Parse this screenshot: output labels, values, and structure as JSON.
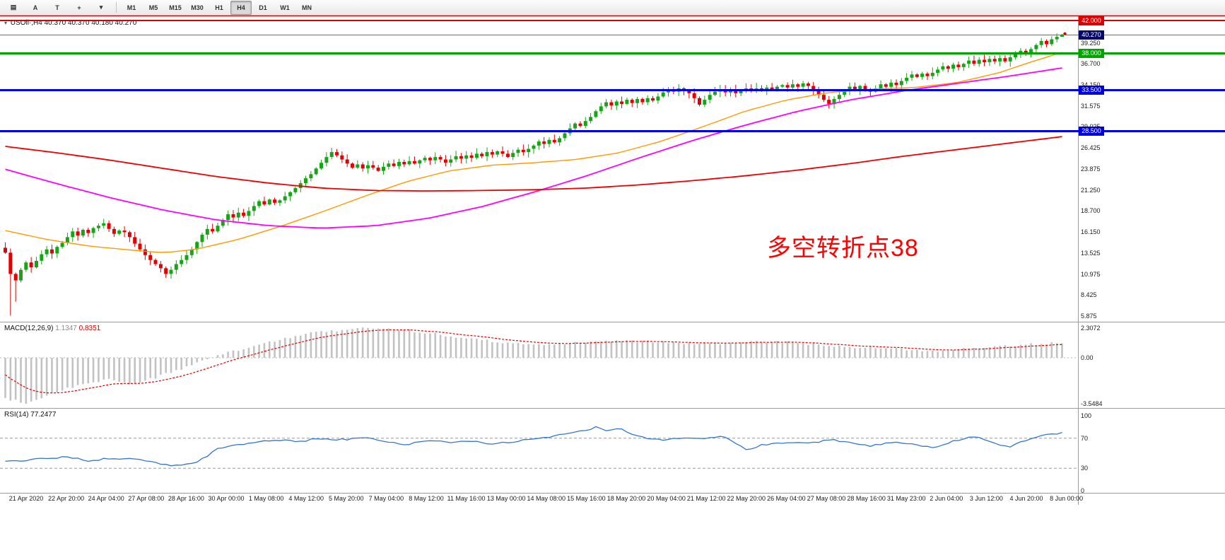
{
  "toolbar": {
    "tools": [
      {
        "name": "chart-type-icon",
        "glyph": "▤"
      },
      {
        "name": "font-tool-button",
        "glyph": "A"
      },
      {
        "name": "text-label-tool-button",
        "glyph": "T"
      },
      {
        "name": "crosshair-tool-icon",
        "glyph": "+"
      },
      {
        "name": "tools-dropdown-icon",
        "glyph": "▾"
      }
    ],
    "timeframes": [
      "M1",
      "M5",
      "M15",
      "M30",
      "H1",
      "H4",
      "D1",
      "W1",
      "MN"
    ],
    "active": "H4"
  },
  "chart": {
    "title_symbol": "USOil·,H4",
    "title_ohlc": "40.370 40.370 40.180 40.270",
    "annotation": {
      "text": "多空转折点38",
      "color": "#ff0000"
    },
    "current_price": {
      "label": "40.270",
      "price": 40.27,
      "line_color": "#5a6e8c",
      "badge_color": "#06066e"
    },
    "hlines": [
      {
        "price": 42.72,
        "label": "",
        "color": "#dd0000",
        "width": 3
      },
      {
        "price": 42.0,
        "label": "42.000",
        "color": "#dd0000",
        "width": 2
      },
      {
        "price": 38.0,
        "label": "38.000",
        "color": "#00a400",
        "width": 3
      },
      {
        "price": 33.5,
        "label": "33.500",
        "color": "#0000dd",
        "width": 3
      },
      {
        "price": 28.5,
        "label": "28.500",
        "color": "#0000dd",
        "width": 3
      }
    ],
    "y_ticks": [
      "39.250",
      "36.700",
      "34.150",
      "31.575",
      "29.025",
      "26.425",
      "23.875",
      "21.250",
      "18.700",
      "16.150",
      "13.525",
      "10.975",
      "8.425",
      "5.875"
    ]
  },
  "macd": {
    "name": "MACD(12,26,9)",
    "main": "1.1347",
    "signal": "0.8351",
    "scale": {
      "max": "2.3072",
      "zero": "0.00",
      "min": "-3.5484"
    }
  },
  "rsi": {
    "name": "RSI(14)",
    "value": "77.2477",
    "scale": [
      "100",
      "70",
      "30",
      "0"
    ]
  },
  "chart_data": {
    "type": "candlestick",
    "symbol": "USOil",
    "timeframe": "H4",
    "title": "USOil·,H4 40.370 40.370 40.180 40.270",
    "ohlc_display": {
      "open": 40.37,
      "high": 40.37,
      "low": 40.18,
      "close": 40.27
    },
    "price_axis": {
      "min": 5.15,
      "max": 42.61,
      "ticks": [
        39.25,
        36.7,
        34.15,
        31.575,
        29.025,
        26.425,
        23.875,
        21.25,
        18.7,
        16.15,
        13.525,
        10.975,
        8.425,
        5.875
      ]
    },
    "first_open": 14.2,
    "closes": [
      13.6,
      11.0,
      10.2,
      11.5,
      12.4,
      11.8,
      12.6,
      13.4,
      14.0,
      13.5,
      14.3,
      14.8,
      15.5,
      16.2,
      15.7,
      16.4,
      16.0,
      16.6,
      16.9,
      17.2,
      16.5,
      15.9,
      16.3,
      16.1,
      15.5,
      14.7,
      14.0,
      13.3,
      12.7,
      12.2,
      11.7,
      11.0,
      11.5,
      12.2,
      12.7,
      13.3,
      14.0,
      14.9,
      15.8,
      16.5,
      16.2,
      16.9,
      17.6,
      18.3,
      17.9,
      18.5,
      18.1,
      18.7,
      19.3,
      19.9,
      19.5,
      20.1,
      19.7,
      20.0,
      20.5,
      21.0,
      21.5,
      22.1,
      22.7,
      23.2,
      23.9,
      24.6,
      25.3,
      25.9,
      25.5,
      25.0,
      24.5,
      24.0,
      24.4,
      23.9,
      24.3,
      24.0,
      23.6,
      24.1,
      24.5,
      24.2,
      24.7,
      24.4,
      24.8,
      24.5,
      24.9,
      25.2,
      24.9,
      25.3,
      25.0,
      24.6,
      25.0,
      25.4,
      25.1,
      25.5,
      25.2,
      25.7,
      25.4,
      25.9,
      25.6,
      26.0,
      25.7,
      25.3,
      25.8,
      26.2,
      25.9,
      26.3,
      26.7,
      27.2,
      26.9,
      27.4,
      27.1,
      27.6,
      28.2,
      28.8,
      29.4,
      29.1,
      29.7,
      30.2,
      30.9,
      31.5,
      32.0,
      31.6,
      32.1,
      31.8,
      32.3,
      31.9,
      32.4,
      32.0,
      32.5,
      32.2,
      32.7,
      33.2,
      33.6,
      33.3,
      33.7,
      33.4,
      33.1,
      32.5,
      31.7,
      32.3,
      32.9,
      33.3,
      33.6,
      33.2,
      33.5,
      33.1,
      33.4,
      33.7,
      33.4,
      33.7,
      33.5,
      33.8,
      33.6,
      33.9,
      34.1,
      33.8,
      34.2,
      33.9,
      34.3,
      34.0,
      33.5,
      32.9,
      32.3,
      31.8,
      32.4,
      32.9,
      33.4,
      33.9,
      33.5,
      34.0,
      33.6,
      33.3,
      33.7,
      34.2,
      33.9,
      34.4,
      34.1,
      34.6,
      35.0,
      35.4,
      35.1,
      35.5,
      35.2,
      35.6,
      36.0,
      36.4,
      36.1,
      36.6,
      36.3,
      36.7,
      37.1,
      36.7,
      37.2,
      36.9,
      37.3,
      37.0,
      37.4,
      37.0,
      37.5,
      37.9,
      38.3,
      38.0,
      38.5,
      39.0,
      39.5,
      39.1,
      39.7,
      40.0,
      40.27
    ],
    "wick_overrides": {
      "1": {
        "low": 5.9
      },
      "2": {
        "low": 7.6
      },
      "204": {
        "high": 40.37,
        "low": 40.18
      }
    },
    "colors": {
      "up": "#17a517",
      "down": "#e30000",
      "ma_fast": "#ff9900",
      "ma_mid": "#ff00ff",
      "ma_slow": "#ee0000",
      "macd_hist": "#c2c2c2",
      "macd_signal": "#e00000",
      "rsi": "#3377cc"
    },
    "ma_red": [
      [
        0,
        26.6
      ],
      [
        0.05,
        25.8
      ],
      [
        0.1,
        24.9
      ],
      [
        0.15,
        23.9
      ],
      [
        0.2,
        22.9
      ],
      [
        0.25,
        22.1
      ],
      [
        0.3,
        21.5
      ],
      [
        0.35,
        21.2
      ],
      [
        0.4,
        21.15
      ],
      [
        0.45,
        21.2
      ],
      [
        0.5,
        21.3
      ],
      [
        0.55,
        21.5
      ],
      [
        0.6,
        21.9
      ],
      [
        0.65,
        22.4
      ],
      [
        0.7,
        23.0
      ],
      [
        0.75,
        23.7
      ],
      [
        0.8,
        24.5
      ],
      [
        0.85,
        25.4
      ],
      [
        0.9,
        26.2
      ],
      [
        0.95,
        27.0
      ],
      [
        1,
        27.8
      ]
    ],
    "ma_magenta": [
      [
        0,
        23.8
      ],
      [
        0.05,
        22.0
      ],
      [
        0.1,
        20.3
      ],
      [
        0.15,
        18.8
      ],
      [
        0.2,
        17.6
      ],
      [
        0.25,
        16.9
      ],
      [
        0.3,
        16.6
      ],
      [
        0.35,
        16.9
      ],
      [
        0.4,
        17.8
      ],
      [
        0.45,
        19.2
      ],
      [
        0.5,
        21.0
      ],
      [
        0.55,
        23.0
      ],
      [
        0.6,
        25.2
      ],
      [
        0.65,
        27.3
      ],
      [
        0.7,
        29.2
      ],
      [
        0.75,
        30.9
      ],
      [
        0.8,
        32.3
      ],
      [
        0.85,
        33.4
      ],
      [
        0.9,
        34.3
      ],
      [
        0.95,
        35.2
      ],
      [
        1,
        36.2
      ]
    ],
    "ma_orange": [
      [
        0,
        16.3
      ],
      [
        0.04,
        15.2
      ],
      [
        0.08,
        14.4
      ],
      [
        0.12,
        13.9
      ],
      [
        0.15,
        13.6
      ],
      [
        0.18,
        14.0
      ],
      [
        0.22,
        15.2
      ],
      [
        0.26,
        16.8
      ],
      [
        0.3,
        18.6
      ],
      [
        0.34,
        20.5
      ],
      [
        0.38,
        22.3
      ],
      [
        0.42,
        23.6
      ],
      [
        0.46,
        24.3
      ],
      [
        0.5,
        24.6
      ],
      [
        0.54,
        25.0
      ],
      [
        0.58,
        25.8
      ],
      [
        0.62,
        27.2
      ],
      [
        0.66,
        29.0
      ],
      [
        0.7,
        30.9
      ],
      [
        0.74,
        32.3
      ],
      [
        0.78,
        33.2
      ],
      [
        0.82,
        33.6
      ],
      [
        0.86,
        33.8
      ],
      [
        0.9,
        34.4
      ],
      [
        0.94,
        35.6
      ],
      [
        0.97,
        36.9
      ],
      [
        1,
        38.1
      ]
    ],
    "macd": {
      "ylim": [
        -3.956,
        2.747
      ],
      "values": {
        "main": 1.1347,
        "signal": 0.8351
      },
      "signal_start": -1.0,
      "keypoints": [
        [
          0,
          -3.2
        ],
        [
          0.02,
          -3.5
        ],
        [
          0.05,
          -2.6
        ],
        [
          0.08,
          -1.9
        ],
        [
          0.1,
          -1.7
        ],
        [
          0.12,
          -2.0
        ],
        [
          0.14,
          -1.6
        ],
        [
          0.16,
          -1.0
        ],
        [
          0.18,
          -0.5
        ],
        [
          0.2,
          0.2
        ],
        [
          0.23,
          0.8
        ],
        [
          0.26,
          1.4
        ],
        [
          0.29,
          1.9
        ],
        [
          0.32,
          2.2
        ],
        [
          0.35,
          2.3
        ],
        [
          0.38,
          2.15
        ],
        [
          0.41,
          1.8
        ],
        [
          0.44,
          1.45
        ],
        [
          0.47,
          1.2
        ],
        [
          0.5,
          1.05
        ],
        [
          0.53,
          1.1
        ],
        [
          0.56,
          1.25
        ],
        [
          0.59,
          1.3
        ],
        [
          0.62,
          1.2
        ],
        [
          0.65,
          1.1
        ],
        [
          0.68,
          1.15
        ],
        [
          0.71,
          1.25
        ],
        [
          0.74,
          1.2
        ],
        [
          0.77,
          1.0
        ],
        [
          0.8,
          0.85
        ],
        [
          0.83,
          0.75
        ],
        [
          0.86,
          0.6
        ],
        [
          0.88,
          0.55
        ],
        [
          0.9,
          0.7
        ],
        [
          0.93,
          0.85
        ],
        [
          0.96,
          1.0
        ],
        [
          0.98,
          1.1
        ],
        [
          1,
          1.13
        ]
      ]
    },
    "rsi": {
      "ylim": [
        0,
        100
      ],
      "levels": [
        70,
        30
      ],
      "value": 77.2477,
      "keypoints": [
        [
          0,
          38
        ],
        [
          0.03,
          42
        ],
        [
          0.06,
          45
        ],
        [
          0.08,
          40
        ],
        [
          0.1,
          44
        ],
        [
          0.12,
          42
        ],
        [
          0.14,
          38
        ],
        [
          0.16,
          33
        ],
        [
          0.18,
          36
        ],
        [
          0.2,
          55
        ],
        [
          0.22,
          62
        ],
        [
          0.24,
          65
        ],
        [
          0.26,
          68
        ],
        [
          0.28,
          66
        ],
        [
          0.3,
          70
        ],
        [
          0.32,
          68
        ],
        [
          0.34,
          72
        ],
        [
          0.36,
          65
        ],
        [
          0.38,
          62
        ],
        [
          0.4,
          68
        ],
        [
          0.42,
          64
        ],
        [
          0.44,
          66
        ],
        [
          0.46,
          62
        ],
        [
          0.48,
          65
        ],
        [
          0.5,
          70
        ],
        [
          0.52,
          73
        ],
        [
          0.54,
          78
        ],
        [
          0.56,
          85
        ],
        [
          0.57,
          80
        ],
        [
          0.58,
          83
        ],
        [
          0.6,
          72
        ],
        [
          0.62,
          68
        ],
        [
          0.64,
          71
        ],
        [
          0.66,
          69
        ],
        [
          0.68,
          73
        ],
        [
          0.7,
          55
        ],
        [
          0.72,
          62
        ],
        [
          0.74,
          65
        ],
        [
          0.76,
          63
        ],
        [
          0.78,
          68
        ],
        [
          0.8,
          64
        ],
        [
          0.82,
          60
        ],
        [
          0.84,
          65
        ],
        [
          0.86,
          62
        ],
        [
          0.88,
          58
        ],
        [
          0.9,
          67
        ],
        [
          0.92,
          73
        ],
        [
          0.94,
          60
        ],
        [
          0.95,
          58
        ],
        [
          0.96,
          65
        ],
        [
          0.97,
          70
        ],
        [
          0.98,
          74
        ],
        [
          0.99,
          76
        ],
        [
          1,
          77.2
        ]
      ]
    },
    "x_labels": [
      "21 Apr 2020",
      "22 Apr 20:00",
      "24 Apr 04:00",
      "27 Apr 08:00",
      "28 Apr 16:00",
      "30 Apr 00:00",
      "1 May 08:00",
      "4 May 12:00",
      "5 May 20:00",
      "7 May 04:00",
      "8 May 12:00",
      "11 May 16:00",
      "13 May 00:00",
      "14 May 08:00",
      "15 May 16:00",
      "18 May 20:00",
      "20 May 04:00",
      "21 May 12:00",
      "22 May 20:00",
      "26 May 04:00",
      "27 May 08:00",
      "28 May 16:00",
      "31 May 23:00",
      "2 Jun 04:00",
      "3 Jun 12:00",
      "4 Jun 20:00",
      "8 Jun 00:00"
    ]
  }
}
